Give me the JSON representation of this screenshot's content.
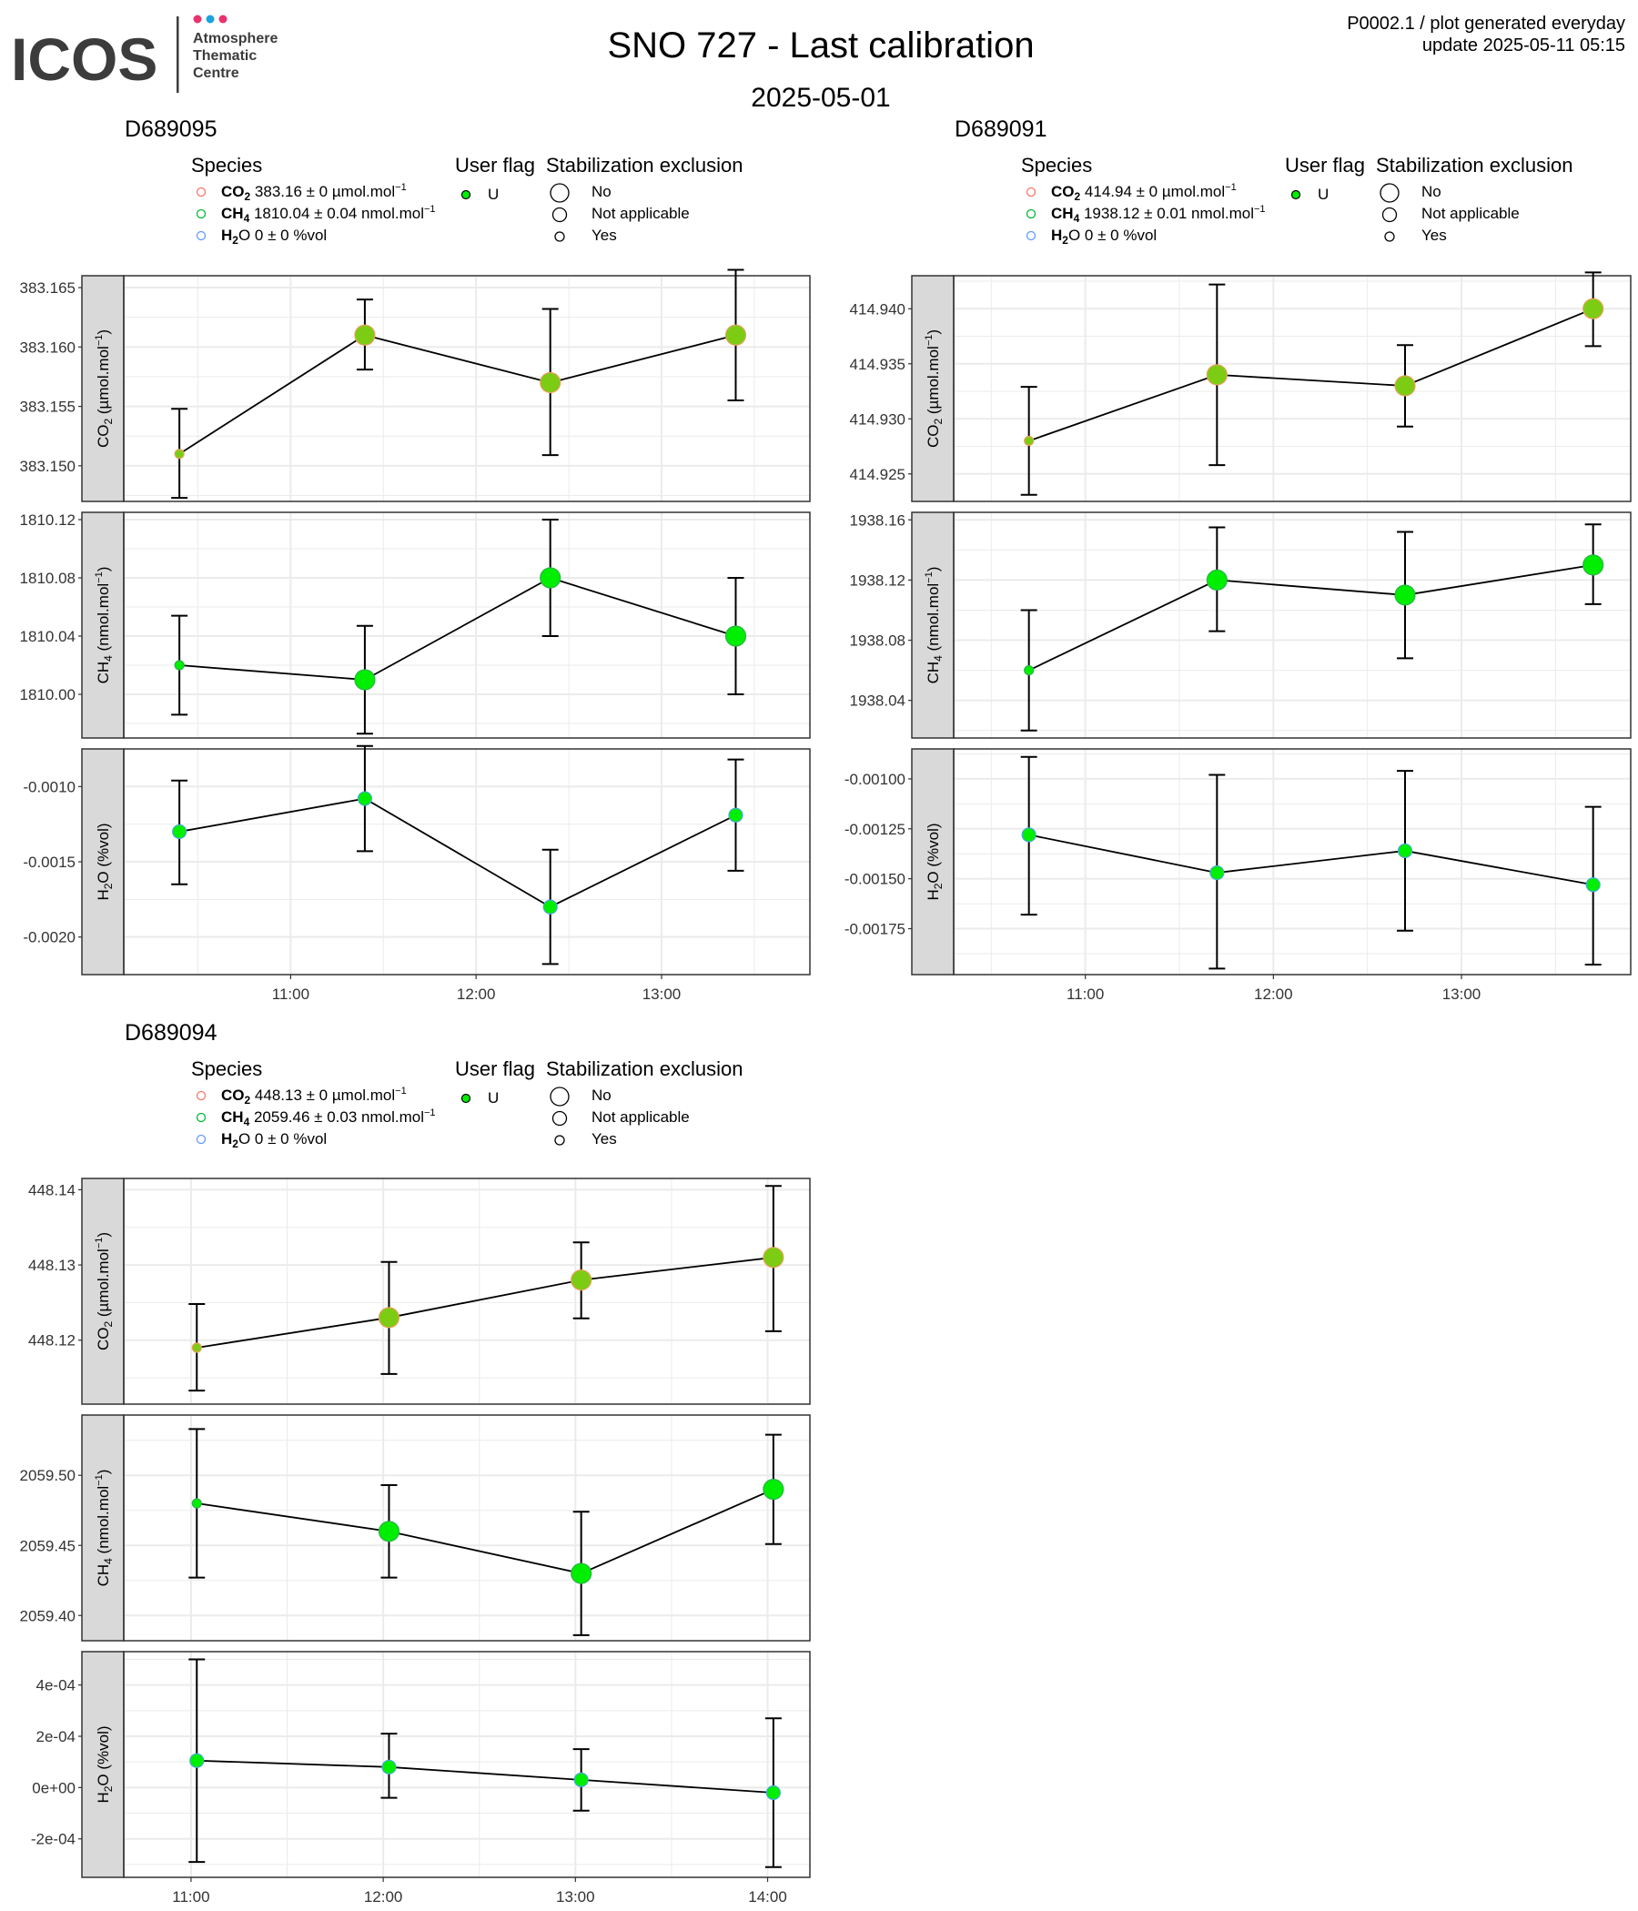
{
  "header": {
    "logo": {
      "wordmark": "ICOS",
      "subtitle_lines": [
        "Atmosphere",
        "Thematic",
        "Centre"
      ],
      "dot_colors": [
        "#e8336d",
        "#1aa3e0",
        "#e8336d"
      ]
    },
    "title": "SNO 727 - Last calibration",
    "date": "2025-05-01",
    "meta_line1": "P0002.1 / plot generated everyday",
    "meta_line2": "update  2025-05-11 05:15"
  },
  "colors": {
    "co2_legend": "#f8766d",
    "ch4_legend": "#00ba38",
    "h2o_legend": "#619cff",
    "point_fill": "#00ee00",
    "strip_fill": "#d9d9d9",
    "grid": "#ebebeb"
  },
  "legend_titles": {
    "species": "Species",
    "user_flag": "User flag",
    "stabilization": "Stabilization exclusion"
  },
  "legend_items": {
    "user_flag": [
      "U"
    ],
    "stabilization": [
      "No",
      "Not applicable",
      "Yes"
    ]
  },
  "strip_labels": {
    "co2": {
      "sp": "CO",
      "sub": "2",
      "unit": " (µmol.mol",
      "sup": "−1",
      "end": ")"
    },
    "ch4": {
      "sp": "CH",
      "sub": "4",
      "unit": " (nmol.mol",
      "sup": "−1",
      "end": ")"
    },
    "h2o": {
      "sp": "H",
      "sub": "2",
      "unit": "O (%vol)",
      "sup": "",
      "end": ""
    }
  },
  "chart_data": [
    {
      "type": "line",
      "panel_title": "D689095",
      "x_ticks": [
        "11:00",
        "12:00",
        "13:00"
      ],
      "x_tick_values": [
        11.0,
        12.0,
        13.0
      ],
      "x_range": [
        10.1,
        13.8
      ],
      "legend_species": [
        {
          "name": "CO",
          "sub": "2",
          "value": " 383.16 ± 0 µmol.mol",
          "sup": "−1"
        },
        {
          "name": "CH",
          "sub": "4",
          "value": " 1810.04 ± 0.04 nmol.mol",
          "sup": "−1"
        },
        {
          "name": "H",
          "sub": "2",
          "value": "O 0 ± 0 %vol",
          "sup": ""
        }
      ],
      "panels": [
        {
          "species": "co2",
          "ylim": [
            383.147,
            383.166
          ],
          "y_ticks": [
            "383.150",
            "383.155",
            "383.160",
            "383.165"
          ],
          "y_tick_values": [
            383.15,
            383.155,
            383.16,
            383.165
          ],
          "points": [
            {
              "x": 10.4,
              "y": 383.151,
              "lo": 383.1473,
              "hi": 383.1548,
              "stab": "Yes"
            },
            {
              "x": 11.4,
              "y": 383.161,
              "lo": 383.1581,
              "hi": 383.164,
              "stab": "No"
            },
            {
              "x": 12.4,
              "y": 383.157,
              "lo": 383.1509,
              "hi": 383.1632,
              "stab": "No"
            },
            {
              "x": 13.4,
              "y": 383.161,
              "lo": 383.1555,
              "hi": 383.1665,
              "stab": "No"
            }
          ]
        },
        {
          "species": "ch4",
          "ylim": [
            1809.97,
            1810.125
          ],
          "y_ticks": [
            "1810.00",
            "1810.04",
            "1810.08",
            "1810.12"
          ],
          "y_tick_values": [
            1810.0,
            1810.04,
            1810.08,
            1810.12
          ],
          "points": [
            {
              "x": 10.4,
              "y": 1810.02,
              "lo": 1809.986,
              "hi": 1810.054,
              "stab": "Yes"
            },
            {
              "x": 11.4,
              "y": 1810.01,
              "lo": 1809.973,
              "hi": 1810.047,
              "stab": "No"
            },
            {
              "x": 12.4,
              "y": 1810.08,
              "lo": 1810.04,
              "hi": 1810.12,
              "stab": "No"
            },
            {
              "x": 13.4,
              "y": 1810.04,
              "lo": 1810.0,
              "hi": 1810.08,
              "stab": "No"
            }
          ]
        },
        {
          "species": "h2o",
          "ylim": [
            -0.00225,
            -0.00075
          ],
          "y_ticks": [
            "-0.0020",
            "-0.0015",
            "-0.0010"
          ],
          "y_tick_values": [
            -0.002,
            -0.0015,
            -0.001
          ],
          "points": [
            {
              "x": 10.4,
              "y": -0.0013,
              "lo": -0.00165,
              "hi": -0.00096,
              "stab": "Not applicable"
            },
            {
              "x": 11.4,
              "y": -0.00108,
              "lo": -0.00143,
              "hi": -0.00073,
              "stab": "Not applicable"
            },
            {
              "x": 12.4,
              "y": -0.0018,
              "lo": -0.00218,
              "hi": -0.00142,
              "stab": "Not applicable"
            },
            {
              "x": 13.4,
              "y": -0.00119,
              "lo": -0.00156,
              "hi": -0.00082,
              "stab": "Not applicable"
            }
          ]
        }
      ]
    },
    {
      "type": "line",
      "panel_title": "D689091",
      "x_ticks": [
        "11:00",
        "12:00",
        "13:00"
      ],
      "x_tick_values": [
        11.0,
        12.0,
        13.0
      ],
      "x_range": [
        10.3,
        13.9
      ],
      "legend_species": [
        {
          "name": "CO",
          "sub": "2",
          "value": " 414.94 ± 0 µmol.mol",
          "sup": "−1"
        },
        {
          "name": "CH",
          "sub": "4",
          "value": " 1938.12 ± 0.01 nmol.mol",
          "sup": "−1"
        },
        {
          "name": "H",
          "sub": "2",
          "value": "O 0 ± 0 %vol",
          "sup": ""
        }
      ],
      "panels": [
        {
          "species": "co2",
          "ylim": [
            414.9225,
            414.943
          ],
          "y_ticks": [
            "414.925",
            "414.930",
            "414.935",
            "414.940"
          ],
          "y_tick_values": [
            414.925,
            414.93,
            414.935,
            414.94
          ],
          "points": [
            {
              "x": 10.7,
              "y": 414.928,
              "lo": 414.9231,
              "hi": 414.9329,
              "stab": "Yes"
            },
            {
              "x": 11.7,
              "y": 414.934,
              "lo": 414.9258,
              "hi": 414.9422,
              "stab": "No"
            },
            {
              "x": 12.7,
              "y": 414.933,
              "lo": 414.9293,
              "hi": 414.9367,
              "stab": "No"
            },
            {
              "x": 13.7,
              "y": 414.94,
              "lo": 414.9366,
              "hi": 414.9433,
              "stab": "No"
            }
          ]
        },
        {
          "species": "ch4",
          "ylim": [
            1938.015,
            1938.165
          ],
          "y_ticks": [
            "1938.04",
            "1938.08",
            "1938.12",
            "1938.16"
          ],
          "y_tick_values": [
            1938.04,
            1938.08,
            1938.12,
            1938.16
          ],
          "points": [
            {
              "x": 10.7,
              "y": 1938.06,
              "lo": 1938.02,
              "hi": 1938.1,
              "stab": "Yes"
            },
            {
              "x": 11.7,
              "y": 1938.12,
              "lo": 1938.086,
              "hi": 1938.155,
              "stab": "No"
            },
            {
              "x": 12.7,
              "y": 1938.11,
              "lo": 1938.068,
              "hi": 1938.152,
              "stab": "No"
            },
            {
              "x": 13.7,
              "y": 1938.13,
              "lo": 1938.104,
              "hi": 1938.157,
              "stab": "No"
            }
          ]
        },
        {
          "species": "h2o",
          "ylim": [
            -0.00198,
            -0.00085
          ],
          "y_ticks": [
            "-0.00175",
            "-0.00150",
            "-0.00125",
            "-0.00100"
          ],
          "y_tick_values": [
            -0.00175,
            -0.0015,
            -0.00125,
            -0.001
          ],
          "points": [
            {
              "x": 10.7,
              "y": -0.00128,
              "lo": -0.00168,
              "hi": -0.00089,
              "stab": "Not applicable"
            },
            {
              "x": 11.7,
              "y": -0.00147,
              "lo": -0.00195,
              "hi": -0.00098,
              "stab": "Not applicable"
            },
            {
              "x": 12.7,
              "y": -0.00136,
              "lo": -0.00176,
              "hi": -0.00096,
              "stab": "Not applicable"
            },
            {
              "x": 13.7,
              "y": -0.00153,
              "lo": -0.00193,
              "hi": -0.00114,
              "stab": "Not applicable"
            }
          ]
        }
      ]
    },
    {
      "type": "line",
      "panel_title": "D689094",
      "x_ticks": [
        "11:00",
        "12:00",
        "13:00",
        "14:00"
      ],
      "x_tick_values": [
        11.0,
        12.0,
        13.0,
        14.0
      ],
      "x_range": [
        10.65,
        14.22
      ],
      "legend_species": [
        {
          "name": "CO",
          "sub": "2",
          "value": " 448.13 ± 0 µmol.mol",
          "sup": "−1"
        },
        {
          "name": "CH",
          "sub": "4",
          "value": " 2059.46 ± 0.03 nmol.mol",
          "sup": "−1"
        },
        {
          "name": "H",
          "sub": "2",
          "value": "O 0 ± 0 %vol",
          "sup": ""
        }
      ],
      "panels": [
        {
          "species": "co2",
          "ylim": [
            448.1115,
            448.1415
          ],
          "y_ticks": [
            "448.12",
            "448.13",
            "448.14"
          ],
          "y_tick_values": [
            448.12,
            448.13,
            448.14
          ],
          "points": [
            {
              "x": 11.03,
              "y": 448.119,
              "lo": 448.1133,
              "hi": 448.1248,
              "stab": "Yes"
            },
            {
              "x": 12.03,
              "y": 448.123,
              "lo": 448.1155,
              "hi": 448.1304,
              "stab": "No"
            },
            {
              "x": 13.03,
              "y": 448.128,
              "lo": 448.1229,
              "hi": 448.133,
              "stab": "No"
            },
            {
              "x": 14.03,
              "y": 448.131,
              "lo": 448.1212,
              "hi": 448.1405,
              "stab": "No"
            }
          ]
        },
        {
          "species": "ch4",
          "ylim": [
            2059.382,
            2059.543
          ],
          "y_ticks": [
            "2059.40",
            "2059.45",
            "2059.50"
          ],
          "y_tick_values": [
            2059.4,
            2059.45,
            2059.5
          ],
          "points": [
            {
              "x": 11.03,
              "y": 2059.48,
              "lo": 2059.427,
              "hi": 2059.533,
              "stab": "Yes"
            },
            {
              "x": 12.03,
              "y": 2059.46,
              "lo": 2059.427,
              "hi": 2059.493,
              "stab": "No"
            },
            {
              "x": 13.03,
              "y": 2059.43,
              "lo": 2059.386,
              "hi": 2059.474,
              "stab": "No"
            },
            {
              "x": 14.03,
              "y": 2059.49,
              "lo": 2059.451,
              "hi": 2059.529,
              "stab": "No"
            }
          ]
        },
        {
          "species": "h2o",
          "ylim": [
            -0.00035,
            0.00053
          ],
          "y_ticks": [
            "-2e-04",
            "0e+00",
            "2e-04",
            "4e-04"
          ],
          "y_tick_values": [
            -0.0002,
            0.0,
            0.0002,
            0.0004
          ],
          "points": [
            {
              "x": 11.03,
              "y": 0.000105,
              "lo": -0.00029,
              "hi": 0.0005,
              "stab": "Not applicable"
            },
            {
              "x": 12.03,
              "y": 8e-05,
              "lo": -4e-05,
              "hi": 0.00021,
              "stab": "Not applicable"
            },
            {
              "x": 13.03,
              "y": 3e-05,
              "lo": -9e-05,
              "hi": 0.00015,
              "stab": "Not applicable"
            },
            {
              "x": 14.03,
              "y": -2e-05,
              "lo": -0.00031,
              "hi": 0.00027,
              "stab": "Not applicable"
            }
          ]
        }
      ]
    }
  ]
}
